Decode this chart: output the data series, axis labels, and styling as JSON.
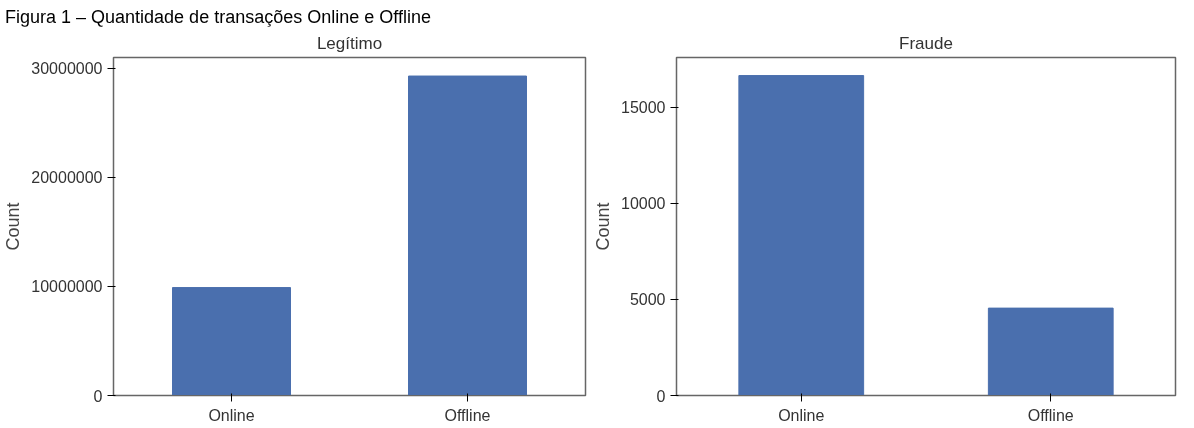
{
  "chart_data": [
    {
      "type": "bar",
      "title": "Legítimo",
      "annotations": [
        "Figura 1 – Quantidade de transações Online e Offline"
      ],
      "ylabel": "Count",
      "categories": [
        "Online",
        "Offline"
      ],
      "values": [
        9900000,
        29300000
      ],
      "color": "#4a6fae",
      "ylim": [
        0,
        31000000
      ],
      "yticks": [
        0,
        10000000,
        20000000,
        30000000
      ],
      "grid": false
    },
    {
      "type": "bar",
      "title": "Fraude",
      "ylabel": "Count",
      "categories": [
        "Online",
        "Offline"
      ],
      "values": [
        16660,
        4550
      ],
      "color": "#4a6fae",
      "ylim": [
        0,
        17600
      ],
      "yticks": [
        0,
        5000,
        10000,
        15000
      ],
      "grid": false
    }
  ]
}
